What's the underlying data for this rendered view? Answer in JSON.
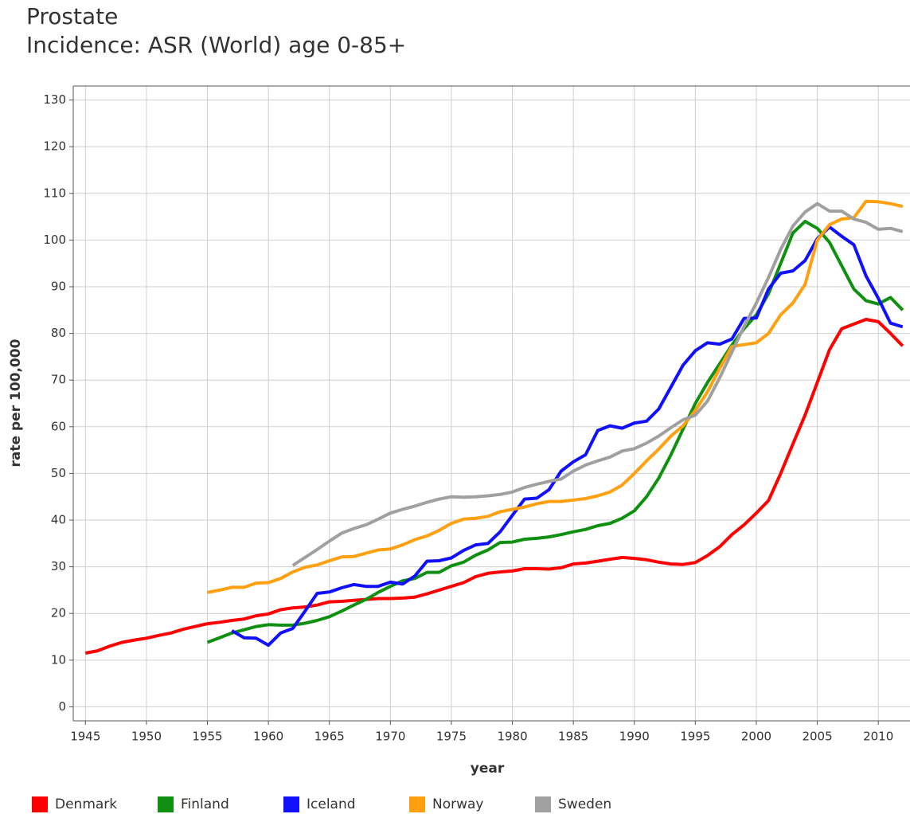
{
  "chart_data": {
    "type": "line",
    "title": "Prostate",
    "subtitle": "Incidence: ASR (World) age 0-85+",
    "xlabel": "year",
    "ylabel": "rate per 100,000",
    "x": [
      1945,
      1946,
      1947,
      1948,
      1949,
      1950,
      1951,
      1952,
      1953,
      1954,
      1955,
      1956,
      1957,
      1958,
      1959,
      1960,
      1961,
      1962,
      1963,
      1964,
      1965,
      1966,
      1967,
      1968,
      1969,
      1970,
      1971,
      1972,
      1973,
      1974,
      1975,
      1976,
      1977,
      1978,
      1979,
      1980,
      1981,
      1982,
      1983,
      1984,
      1985,
      1986,
      1987,
      1988,
      1989,
      1990,
      1991,
      1992,
      1993,
      1994,
      1995,
      1996,
      1997,
      1998,
      1999,
      2000,
      2001,
      2002,
      2003,
      2004,
      2005,
      2006,
      2007,
      2008,
      2009,
      2010,
      2011,
      2012
    ],
    "series": [
      {
        "name": "Denmark",
        "color": "#ff0000",
        "values": [
          11.5,
          12,
          13,
          13.8,
          14.3,
          14.7,
          15.3,
          15.8,
          16.6,
          17.2,
          17.8,
          18.1,
          18.5,
          18.8,
          19.5,
          19.9,
          20.8,
          21.2,
          21.4,
          21.8,
          22.5,
          22.6,
          22.8,
          23,
          23.2,
          23.2,
          23.3,
          23.5,
          24.2,
          25,
          25.8,
          26.6,
          27.9,
          28.6,
          28.9,
          29.1,
          29.6,
          29.6,
          29.5,
          29.8,
          30.6,
          30.8,
          31.2,
          31.6,
          32,
          31.8,
          31.5,
          31,
          30.6,
          30.5,
          30.9,
          32.4,
          34.3,
          36.9,
          39,
          41.5,
          44.2,
          50,
          56.3,
          62.5,
          69.5,
          76.5,
          81,
          82,
          83,
          82.5,
          80,
          77.3
        ]
      },
      {
        "name": "Finland",
        "color": "#109010",
        "values": [
          null,
          null,
          null,
          null,
          null,
          null,
          null,
          null,
          null,
          null,
          13.8,
          14.8,
          15.8,
          16.5,
          17.2,
          17.6,
          17.5,
          17.5,
          17.9,
          18.5,
          19.3,
          20.5,
          21.8,
          23,
          24.5,
          25.8,
          27,
          27.5,
          28.8,
          28.8,
          30.2,
          31,
          32.5,
          33.6,
          35.2,
          35.3,
          35.9,
          36.1,
          36.4,
          36.9,
          37.5,
          38,
          38.8,
          39.3,
          40.4,
          42,
          45,
          49,
          54,
          59.5,
          65,
          69.5,
          73.5,
          77.5,
          81,
          84,
          88.5,
          95,
          101.5,
          104,
          102.5,
          99.5,
          94.5,
          89.5,
          87,
          86.3,
          87.7,
          85
        ]
      },
      {
        "name": "Iceland",
        "color": "#1010ff",
        "values": [
          null,
          null,
          null,
          null,
          null,
          null,
          null,
          null,
          null,
          null,
          null,
          null,
          16.3,
          14.8,
          14.7,
          13.2,
          15.8,
          16.8,
          20.5,
          24.3,
          24.6,
          25.5,
          26.2,
          25.8,
          25.8,
          26.7,
          26.3,
          28,
          31.2,
          31.3,
          31.9,
          33.5,
          34.7,
          35,
          37.5,
          41,
          44.5,
          44.7,
          46.5,
          50.5,
          52.5,
          54,
          59.2,
          60.2,
          59.7,
          60.8,
          61.2,
          63.8,
          68.5,
          73.2,
          76.3,
          78,
          77.7,
          78.8,
          83.2,
          83.3,
          89.5,
          92.9,
          93.4,
          95.6,
          100.3,
          102.8,
          100.8,
          99,
          92.3,
          87.5,
          82.2,
          81.4
        ]
      },
      {
        "name": "Norway",
        "color": "#ffa010",
        "values": [
          null,
          null,
          null,
          null,
          null,
          null,
          null,
          null,
          null,
          null,
          24.5,
          25,
          25.6,
          25.6,
          26.5,
          26.6,
          27.5,
          28.9,
          29.9,
          30.4,
          31.3,
          32.1,
          32.2,
          32.9,
          33.6,
          33.8,
          34.7,
          35.8,
          36.6,
          37.8,
          39.3,
          40.2,
          40.4,
          40.8,
          41.8,
          42.3,
          42.8,
          43.5,
          44,
          44,
          44.3,
          44.6,
          45.2,
          46,
          47.5,
          50,
          52.7,
          55.2,
          58,
          60.2,
          63.5,
          67.5,
          72.5,
          77.2,
          77.6,
          78,
          80,
          84,
          86.5,
          90.5,
          100,
          103.3,
          104.5,
          104.8,
          108.3,
          108.2,
          107.8,
          107.2
        ]
      },
      {
        "name": "Sweden",
        "color": "#a0a0a0",
        "values": [
          null,
          null,
          null,
          null,
          null,
          null,
          null,
          null,
          null,
          null,
          null,
          null,
          null,
          null,
          null,
          null,
          null,
          30.3,
          32,
          33.7,
          35.5,
          37.2,
          38.2,
          39,
          40.2,
          41.5,
          42.3,
          43,
          43.8,
          44.5,
          45,
          44.9,
          45,
          45.2,
          45.5,
          46,
          47,
          47.7,
          48.3,
          48.8,
          50.5,
          51.8,
          52.7,
          53.5,
          54.8,
          55.3,
          56.5,
          58,
          59.8,
          61.5,
          62.5,
          65.5,
          70.5,
          76,
          81.5,
          86.5,
          92,
          98,
          103,
          106,
          107.8,
          106.2,
          106.2,
          104.5,
          103.8,
          102.3,
          102.5,
          101.8
        ]
      }
    ],
    "xlim": [
      1944,
      2012.6
    ],
    "ylim": [
      -3,
      133
    ],
    "xticks": [
      1945,
      1950,
      1955,
      1960,
      1965,
      1970,
      1975,
      1980,
      1985,
      1990,
      1995,
      2000,
      2005,
      2010
    ],
    "yticks": [
      0,
      10,
      20,
      30,
      40,
      50,
      60,
      70,
      80,
      90,
      100,
      110,
      120,
      130
    ],
    "grid": true,
    "legend": "bottom"
  }
}
